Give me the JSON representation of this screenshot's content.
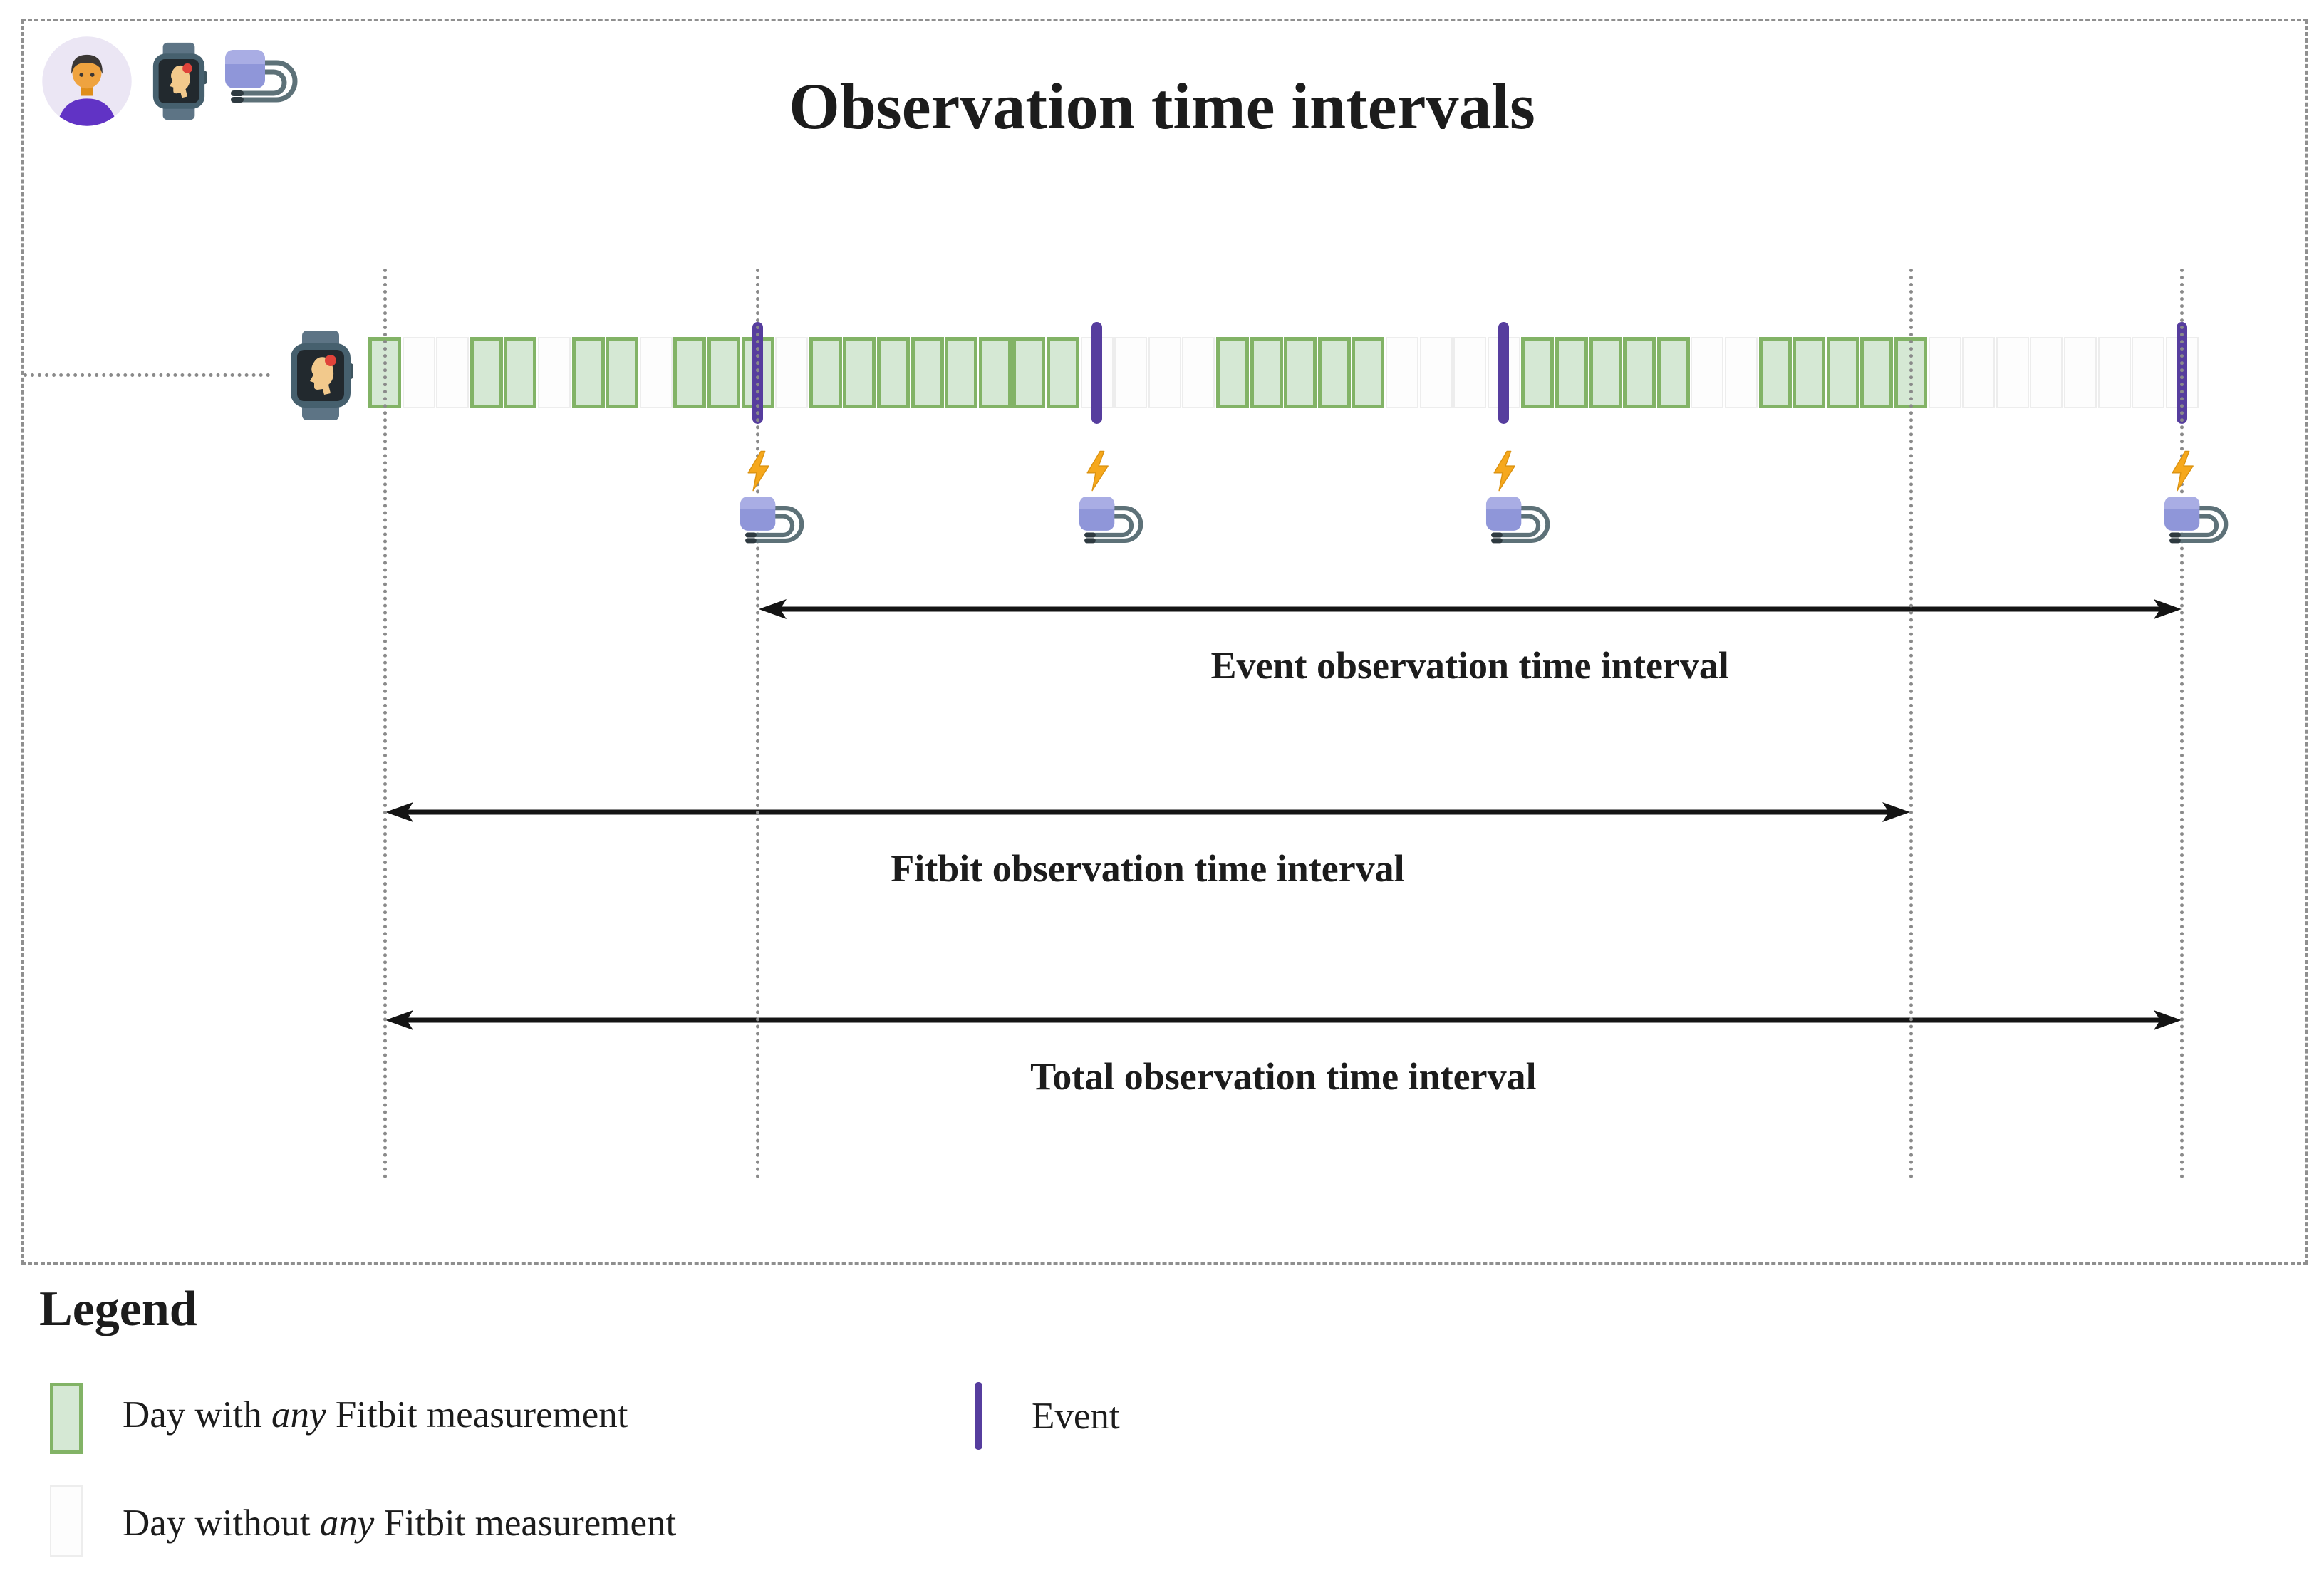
{
  "header": {
    "title": "Observation time intervals",
    "icons": [
      "person-icon",
      "smartwatch-head-icon",
      "bp-monitor-icon"
    ]
  },
  "timeline": {
    "row_icon": "smartwatch-head-icon",
    "day_pattern": "gwwggwggwgggwggggggggwwwwgggggwwwwgggggwwgggggwwwwwwww",
    "event_day_indices": [
      11,
      21,
      33,
      53
    ],
    "guide_day_indices": [
      0,
      11,
      45,
      53
    ],
    "event_annotation_icons": [
      "lightning-icon",
      "bp-monitor-icon"
    ]
  },
  "intervals": [
    {
      "label": "Event observation time interval",
      "from_day": 11,
      "to_day": 53
    },
    {
      "label": "Fitbit observation time interval",
      "from_day": 0,
      "to_day": 45
    },
    {
      "label": "Total observation time interval",
      "from_day": 0,
      "to_day": 53
    }
  ],
  "legend": {
    "heading": "Legend",
    "items": [
      {
        "swatch": "day-with-measurement",
        "prefix": "Day with ",
        "em": "any",
        "suffix": " Fitbit measurement"
      },
      {
        "swatch": "day-without-measurement",
        "prefix": "Day without ",
        "em": "any",
        "suffix": " Fitbit measurement"
      },
      {
        "swatch": "event-marker",
        "label": "Event"
      }
    ]
  },
  "colors": {
    "day_green_fill": "#d5e8d4",
    "day_green_stroke": "#82b366",
    "day_empty_fill": "#fdfdfd",
    "day_empty_stroke": "#ededed",
    "event": "#563d9e",
    "lightning": "#f6a81c",
    "guide": "#8a8a8a",
    "arrow": "#141414"
  }
}
